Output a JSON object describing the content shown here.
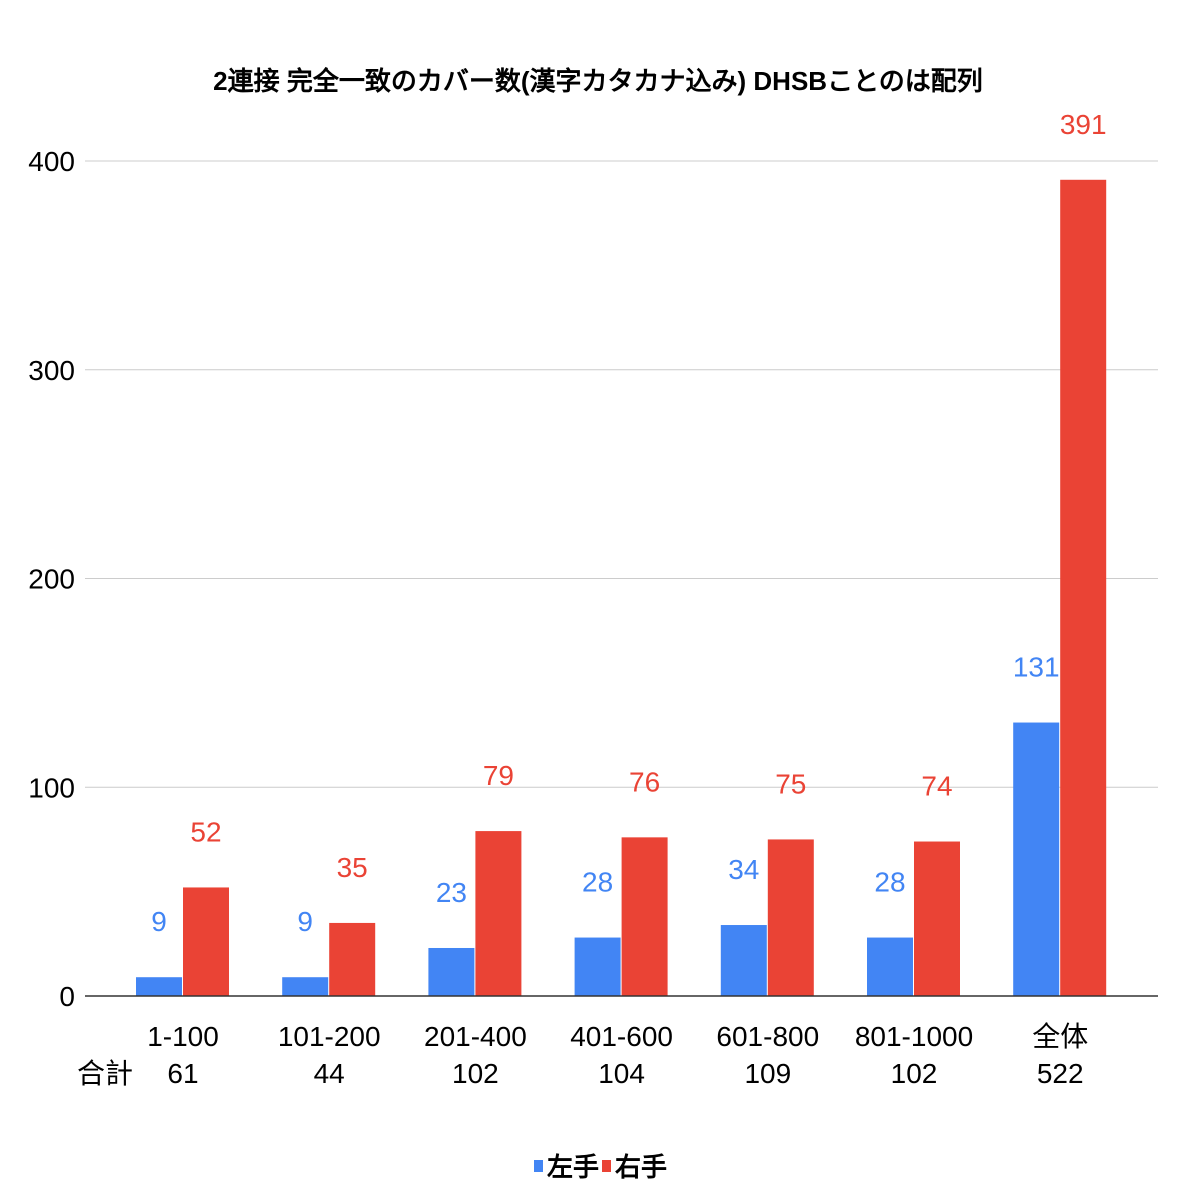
{
  "chart_data": {
    "type": "bar",
    "title": "2連接 完全一致のカバー数(漢字カタカナ込み) DHSBことのは配列",
    "categories": [
      "1-100",
      "101-200",
      "201-400",
      "401-600",
      "601-800",
      "801-1000",
      "全体"
    ],
    "totals_label": "合計",
    "totals": [
      "61",
      "44",
      "102",
      "104",
      "109",
      "102",
      "522"
    ],
    "series": [
      {
        "name": "左手",
        "color": "#4285f4",
        "values": [
          9,
          9,
          23,
          28,
          34,
          28,
          131
        ]
      },
      {
        "name": "右手",
        "color": "#ea4335",
        "values": [
          52,
          35,
          79,
          76,
          75,
          74,
          391
        ]
      }
    ],
    "ylim": [
      0,
      400
    ],
    "yticks": [
      0,
      100,
      200,
      300,
      400
    ],
    "grid": true,
    "legend": "bottom",
    "xlabel": "",
    "ylabel": ""
  }
}
